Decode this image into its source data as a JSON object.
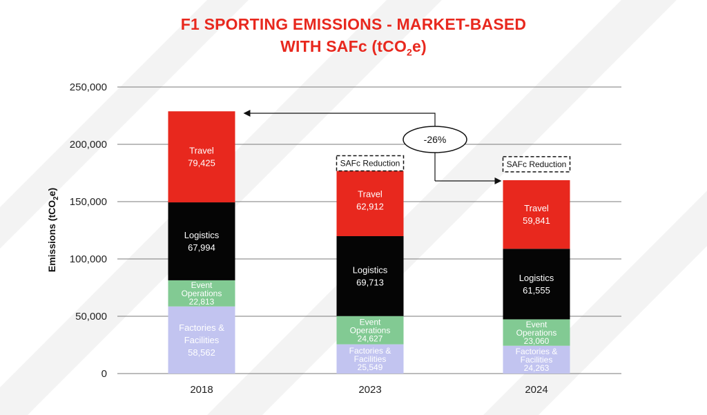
{
  "title": {
    "line1": "F1 SPORTING EMISSIONS - MARKET-BASED",
    "line2_prefix": "WITH SAFc (tCO",
    "line2_sub": "2",
    "line2_suffix": "e)"
  },
  "colors": {
    "title": "#e8281e",
    "Factories & Facilities": "#c2c4f0",
    "Event Operations": "#82ca93",
    "Logistics": "#050505",
    "Travel": "#e8281e"
  },
  "chart_data": {
    "type": "bar",
    "stacked": true,
    "categories": [
      "2018",
      "2023",
      "2024"
    ],
    "series": [
      {
        "name": "Factories & Facilities",
        "values": [
          58562,
          25549,
          24263
        ],
        "labels": [
          [
            "Factories &",
            "Facilities",
            "58,562"
          ],
          [
            "Factories &",
            "Facilities",
            "25,549"
          ],
          [
            "Factories &",
            "Facilities",
            "24,263"
          ]
        ]
      },
      {
        "name": "Event Operations",
        "values": [
          22813,
          24627,
          23060
        ],
        "labels": [
          [
            "Event",
            "Operations",
            "22,813"
          ],
          [
            "Event",
            "Operations",
            "24,627"
          ],
          [
            "Event",
            "Operations",
            "23,060"
          ]
        ]
      },
      {
        "name": "Logistics",
        "values": [
          67994,
          69713,
          61555
        ],
        "labels": [
          [
            "Logistics",
            "67,994"
          ],
          [
            "Logistics",
            "69,713"
          ],
          [
            "Logistics",
            "61,555"
          ]
        ]
      },
      {
        "name": "Travel",
        "values": [
          79425,
          62912,
          59841
        ],
        "labels": [
          [
            "Travel",
            "79,425"
          ],
          [
            "Travel",
            "62,912"
          ],
          [
            "Travel",
            "59,841"
          ]
        ]
      }
    ],
    "ylabel_prefix": "Emissions (tCO",
    "ylabel_sub": "2",
    "ylabel_suffix": "e)",
    "ylim": [
      0,
      250000
    ],
    "yticks": [
      0,
      50000,
      100000,
      150000,
      200000,
      250000
    ],
    "ytick_labels": [
      "0",
      "50,000",
      "100,000",
      "150,000",
      "200,000",
      "250,000"
    ],
    "grid": true,
    "annotations": {
      "safc_box_text": "SAFc Reduction",
      "change_text": "-26%"
    }
  }
}
